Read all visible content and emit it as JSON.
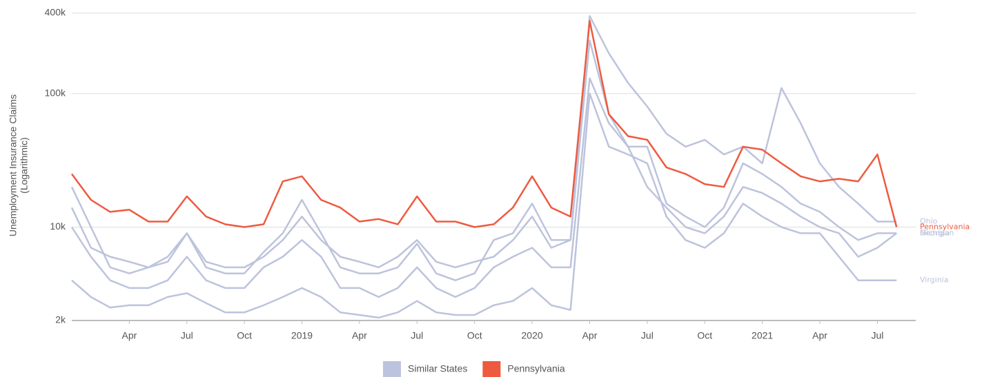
{
  "chart_data": {
    "type": "line",
    "ylabel": [
      "Unemployment Insurance Claims",
      "(Logarithmic)"
    ],
    "log_y": true,
    "grid": true,
    "x": [
      "2018-01",
      "2018-02",
      "2018-03",
      "2018-04",
      "2018-05",
      "2018-06",
      "2018-07",
      "2018-08",
      "2018-09",
      "2018-10",
      "2018-11",
      "2018-12",
      "2019-01",
      "2019-02",
      "2019-03",
      "2019-04",
      "2019-05",
      "2019-06",
      "2019-07",
      "2019-08",
      "2019-09",
      "2019-10",
      "2019-11",
      "2019-12",
      "2020-01",
      "2020-02",
      "2020-03",
      "2020-04",
      "2020-05",
      "2020-06",
      "2020-07",
      "2020-08",
      "2020-09",
      "2020-10",
      "2020-11",
      "2020-12",
      "2021-01",
      "2021-02",
      "2021-03",
      "2021-04",
      "2021-05",
      "2021-06",
      "2021-07",
      "2021-08"
    ],
    "xlim": [
      "2018-01",
      "2021-09"
    ],
    "xticks": [
      {
        "value": "2018-04",
        "label": "Apr"
      },
      {
        "value": "2018-07",
        "label": "Jul"
      },
      {
        "value": "2018-10",
        "label": "Oct"
      },
      {
        "value": "2019-01",
        "label": "2019"
      },
      {
        "value": "2019-04",
        "label": "Apr"
      },
      {
        "value": "2019-07",
        "label": "Jul"
      },
      {
        "value": "2019-10",
        "label": "Oct"
      },
      {
        "value": "2020-01",
        "label": "2020"
      },
      {
        "value": "2020-04",
        "label": "Apr"
      },
      {
        "value": "2020-07",
        "label": "Jul"
      },
      {
        "value": "2020-10",
        "label": "Oct"
      },
      {
        "value": "2021-01",
        "label": "2021"
      },
      {
        "value": "2021-04",
        "label": "Apr"
      },
      {
        "value": "2021-07",
        "label": "Jul"
      }
    ],
    "ylim": [
      2000,
      400000
    ],
    "yticks": [
      {
        "value": 2000,
        "label": "2k"
      },
      {
        "value": 10000,
        "label": "10k"
      },
      {
        "value": 100000,
        "label": "100k"
      },
      {
        "value": 400000,
        "label": "400k"
      }
    ],
    "legend": [
      {
        "label": "Similar States",
        "color": "#bcc3dc"
      },
      {
        "label": "Pennsylvania",
        "color": "#ee5a3f"
      }
    ],
    "series": [
      {
        "name": "Ohio",
        "color": "#bcc3dc",
        "values": [
          14000,
          7000,
          6000,
          5500,
          5000,
          6000,
          9000,
          5500,
          5000,
          5000,
          6000,
          8000,
          12000,
          8000,
          6000,
          5500,
          5000,
          6000,
          8000,
          5500,
          5000,
          5500,
          6000,
          8000,
          12000,
          7000,
          8000,
          380000,
          200000,
          120000,
          80000,
          50000,
          40000,
          45000,
          35000,
          40000,
          30000,
          110000,
          60000,
          30000,
          20000,
          15000,
          11000,
          11000
        ]
      },
      {
        "name": "Michigan",
        "color": "#bcc3dc",
        "values": [
          20000,
          10000,
          5000,
          4500,
          5000,
          5500,
          9000,
          5000,
          4500,
          4500,
          6500,
          9000,
          16000,
          9000,
          5000,
          4500,
          4500,
          5000,
          7500,
          4500,
          4000,
          4500,
          8000,
          9000,
          15000,
          8000,
          8000,
          250000,
          70000,
          40000,
          40000,
          15000,
          12000,
          10000,
          14000,
          30000,
          25000,
          20000,
          15000,
          13000,
          10000,
          8000,
          9000,
          9000
        ]
      },
      {
        "name": "Georgia",
        "color": "#bcc3dc",
        "values": [
          10000,
          6000,
          4000,
          3500,
          3500,
          4000,
          6000,
          4000,
          3500,
          3500,
          5000,
          6000,
          8000,
          6000,
          3500,
          3500,
          3000,
          3500,
          5000,
          3500,
          3000,
          3500,
          5000,
          6000,
          7000,
          5000,
          5000,
          130000,
          60000,
          40000,
          20000,
          14000,
          10000,
          9000,
          12000,
          20000,
          18000,
          15000,
          12000,
          10000,
          9000,
          6000,
          7000,
          9000
        ]
      },
      {
        "name": "Virginia",
        "color": "#bcc3dc",
        "values": [
          4000,
          3000,
          2500,
          2600,
          2600,
          3000,
          3200,
          2700,
          2300,
          2300,
          2600,
          3000,
          3500,
          3000,
          2300,
          2200,
          2100,
          2300,
          2800,
          2300,
          2200,
          2200,
          2600,
          2800,
          3500,
          2600,
          2400,
          100000,
          40000,
          35000,
          30000,
          12000,
          8000,
          7000,
          9000,
          15000,
          12000,
          10000,
          9000,
          9000,
          6000,
          4000,
          4000,
          4000
        ]
      },
      {
        "name": "Pennsylvania",
        "color": "#ee5a3f",
        "values": [
          25000,
          16000,
          13000,
          13500,
          11000,
          11000,
          17000,
          12000,
          10500,
          10000,
          10500,
          22000,
          24000,
          16000,
          14000,
          11000,
          11500,
          10500,
          17000,
          11000,
          11000,
          10000,
          10500,
          14000,
          24000,
          14000,
          12000,
          350000,
          70000,
          48000,
          45000,
          28000,
          25000,
          21000,
          20000,
          40000,
          38000,
          30000,
          24000,
          22000,
          23000,
          22000,
          35000,
          10000
        ]
      }
    ]
  }
}
